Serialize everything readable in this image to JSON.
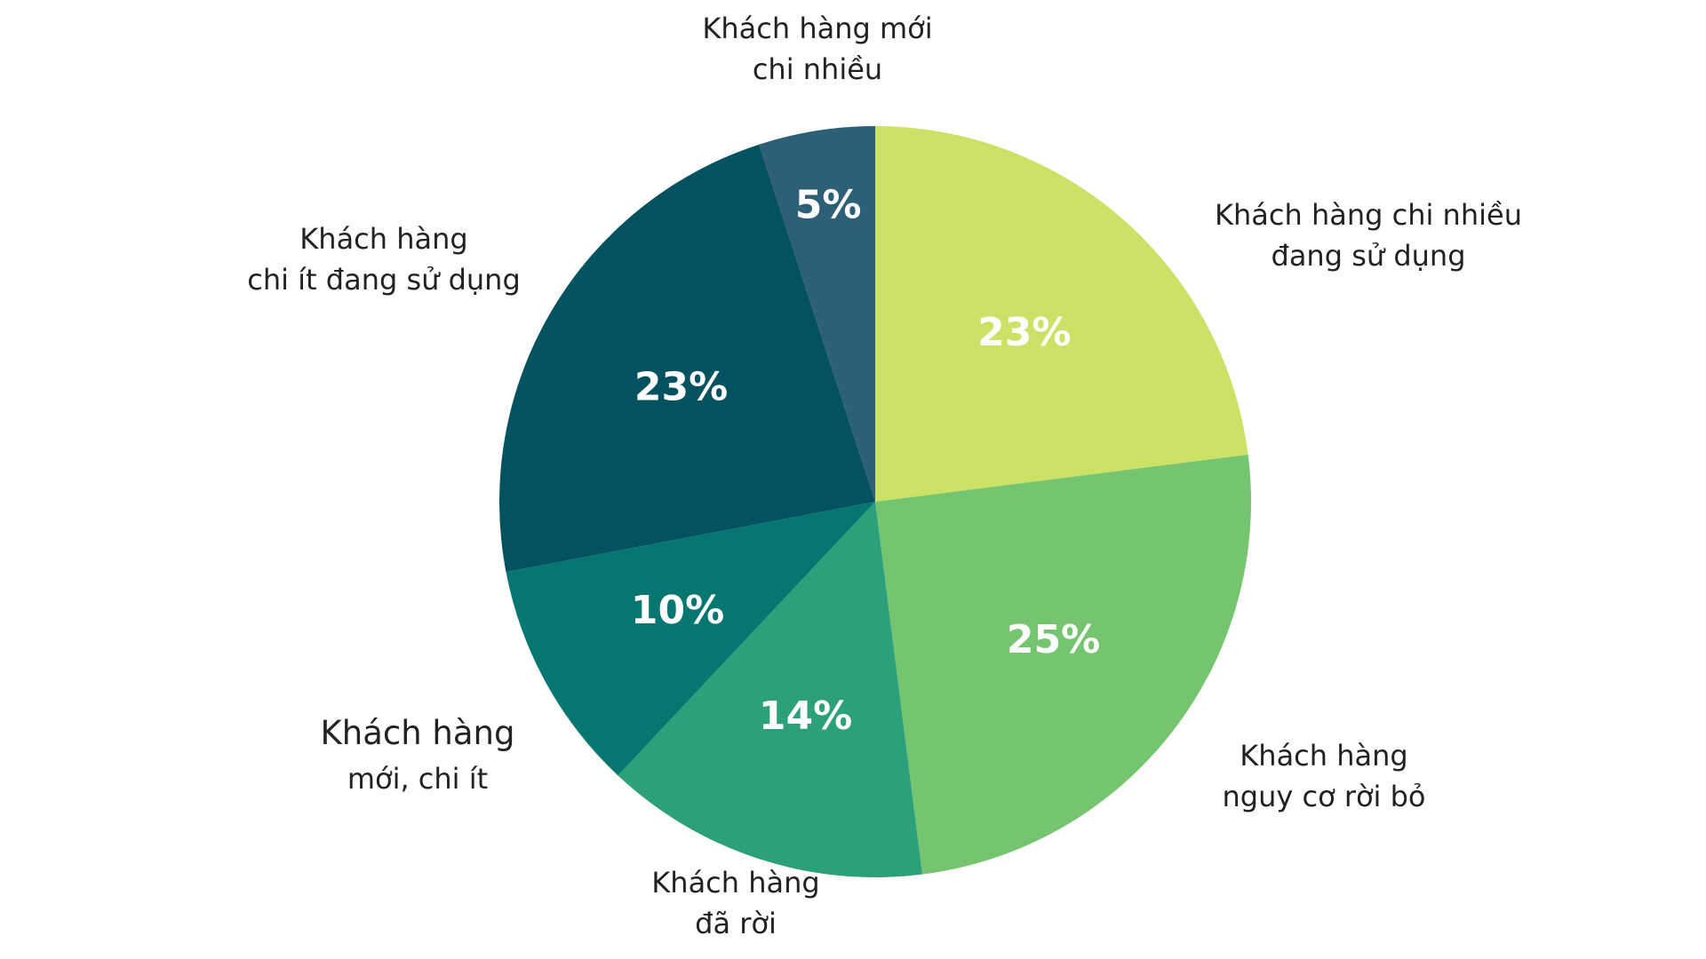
{
  "chart_data": {
    "type": "pie",
    "title": "",
    "slices": [
      {
        "label_lines": [
          "Khách hàng chi nhiều",
          "đang sử dụng"
        ],
        "value": 23,
        "display": "23%",
        "color": "#cbe266"
      },
      {
        "label_lines": [
          "Khách hàng",
          "nguy cơ rời bỏ"
        ],
        "value": 25,
        "display": "25%",
        "color": "#75c46f"
      },
      {
        "label_lines": [
          "Khách hàng",
          "đã rời"
        ],
        "value": 14,
        "display": "14%",
        "color": "#2c9f7b"
      },
      {
        "label_lines": [
          "Khách hàng",
          "mới, chi ít"
        ],
        "value": 10,
        "display": "10%",
        "color": "#067770"
      },
      {
        "label_lines": [
          "Khách hàng",
          "chi ít đang sử dụng"
        ],
        "value": 23,
        "display": "23%",
        "color": "#045160"
      },
      {
        "label_lines": [
          "Khách hàng mới",
          "chi nhiều"
        ],
        "value": 5,
        "display": "5%",
        "color": "#2d5f77"
      }
    ]
  }
}
